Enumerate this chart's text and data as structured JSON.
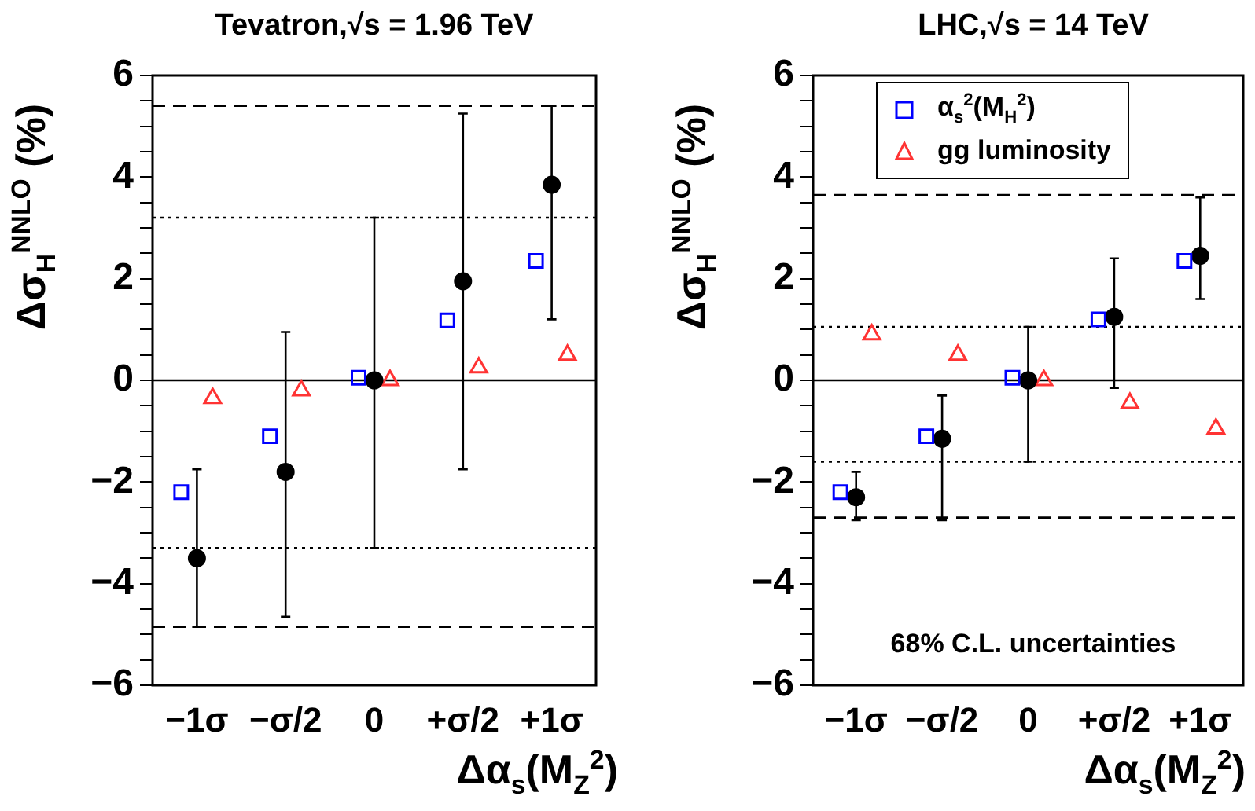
{
  "chart_data": [
    {
      "type": "scatter",
      "title": "Tevatron,√s = 1.96 TeV",
      "xlabel": "Δα$_{s}$(M$_{Z}$$^{2}$)",
      "ylabel": "Δσ$_{H}$$^{NNLO}$ (%)",
      "categories": [
        "−1σ",
        "−σ/2",
        "0",
        "+σ/2",
        "+1σ"
      ],
      "ylim": [
        -6,
        6
      ],
      "yticks": [
        -6,
        {
          "value": -5.5,
          "label": null
        },
        {
          "value": -5,
          "label": null
        },
        {
          "value": -4.5,
          "label": null
        },
        -4,
        {
          "value": -3.5,
          "label": null
        },
        {
          "value": -3,
          "label": null
        },
        {
          "value": -2.5,
          "label": null
        },
        -2,
        {
          "value": -1.5,
          "label": null
        },
        {
          "value": -1,
          "label": null
        },
        {
          "value": -0.5,
          "label": null
        },
        0,
        {
          "value": 0.5,
          "label": null
        },
        {
          "value": 1,
          "label": null
        },
        {
          "value": 1.5,
          "label": null
        },
        2,
        {
          "value": 2.5,
          "label": null
        },
        {
          "value": 3,
          "label": null
        },
        {
          "value": 3.5,
          "label": null
        },
        4,
        {
          "value": 4.5,
          "label": null
        },
        {
          "value": 5,
          "label": null
        },
        {
          "value": 5.5,
          "label": null
        },
        6
      ],
      "grid": false,
      "legend": false,
      "series": [
        {
          "color": "#0000ff",
          "marker": "square",
          "values": [
            -2.2,
            -1.1,
            0.05,
            1.18,
            2.35
          ]
        },
        {
          "color": "#000000",
          "marker": "circle",
          "values": [
            -3.5,
            -1.8,
            0.0,
            1.95,
            3.85
          ],
          "errors": [
            [
              -4.85,
              -1.75
            ],
            [
              -4.65,
              0.95
            ],
            [
              -3.3,
              3.2
            ],
            [
              -1.75,
              5.25
            ],
            [
              1.2,
              5.4
            ]
          ]
        },
        {
          "color": "#ff3333",
          "marker": "triangle",
          "values": [
            -0.35,
            -0.2,
            0.0,
            0.25,
            0.5
          ]
        }
      ],
      "ref_lines": [
        {
          "axis": "y",
          "value": 0,
          "line_style": "solid",
          "color": "#000000"
        },
        {
          "axis": "y",
          "value": 5.4,
          "line_style": "dashed",
          "color": "#000000"
        },
        {
          "axis": "y",
          "value": -4.85,
          "line_style": "dashed",
          "color": "#000000"
        },
        {
          "axis": "y",
          "value": 3.2,
          "line_style": "dotted",
          "color": "#000000"
        },
        {
          "axis": "y",
          "value": -3.3,
          "line_style": "dotted",
          "color": "#000000"
        }
      ]
    },
    {
      "type": "scatter",
      "title": "LHC,√s = 14 TeV",
      "xlabel": "Δα$_{s}$(M$_{Z}$$^{2}$)",
      "ylabel": "Δσ$_{H}$$^{NNLO}$ (%)",
      "categories": [
        "−1σ",
        "−σ/2",
        "0",
        "+σ/2",
        "+1σ"
      ],
      "ylim": [
        -6,
        6
      ],
      "yticks": [
        -6,
        {
          "value": -5.5,
          "label": null
        },
        {
          "value": -5,
          "label": null
        },
        {
          "value": -4.5,
          "label": null
        },
        -4,
        {
          "value": -3.5,
          "label": null
        },
        {
          "value": -3,
          "label": null
        },
        {
          "value": -2.5,
          "label": null
        },
        -2,
        {
          "value": -1.5,
          "label": null
        },
        {
          "value": -1,
          "label": null
        },
        {
          "value": -0.5,
          "label": null
        },
        0,
        {
          "value": 0.5,
          "label": null
        },
        {
          "value": 1,
          "label": null
        },
        {
          "value": 1.5,
          "label": null
        },
        2,
        {
          "value": 2.5,
          "label": null
        },
        {
          "value": 3,
          "label": null
        },
        {
          "value": 3.5,
          "label": null
        },
        4,
        {
          "value": 4.5,
          "label": null
        },
        {
          "value": 5,
          "label": null
        },
        {
          "value": 5.5,
          "label": null
        },
        6
      ],
      "grid": false,
      "legend": "top",
      "series": [
        {
          "name": "α$_{s}$$^{2}$(M$_{H}$$^{2}$)",
          "color": "#0000ff",
          "marker": "square",
          "values": [
            -2.2,
            -1.1,
            0.05,
            1.2,
            2.35
          ]
        },
        {
          "color": "#000000",
          "marker": "circle",
          "values": [
            -2.3,
            -1.15,
            0.0,
            1.25,
            2.45
          ],
          "errors": [
            [
              -2.75,
              -1.8
            ],
            [
              -2.75,
              -0.3
            ],
            [
              -1.6,
              1.05
            ],
            [
              -0.15,
              2.4
            ],
            [
              1.6,
              3.6
            ]
          ]
        },
        {
          "name": "gg luminosity",
          "color": "#ff3333",
          "marker": "triangle",
          "values": [
            0.9,
            0.5,
            0.0,
            -0.45,
            -0.95
          ]
        }
      ],
      "ref_lines": [
        {
          "axis": "y",
          "value": 0,
          "line_style": "solid",
          "color": "#000000"
        },
        {
          "axis": "y",
          "value": 3.65,
          "line_style": "dashed",
          "color": "#000000"
        },
        {
          "axis": "y",
          "value": -2.7,
          "line_style": "dashed",
          "color": "#000000"
        },
        {
          "axis": "y",
          "value": 1.05,
          "line_style": "dotted",
          "color": "#000000"
        },
        {
          "axis": "y",
          "value": -1.6,
          "line_style": "dotted",
          "color": "#000000"
        }
      ],
      "annotations": [
        "68% C.L. uncertainties"
      ]
    }
  ]
}
